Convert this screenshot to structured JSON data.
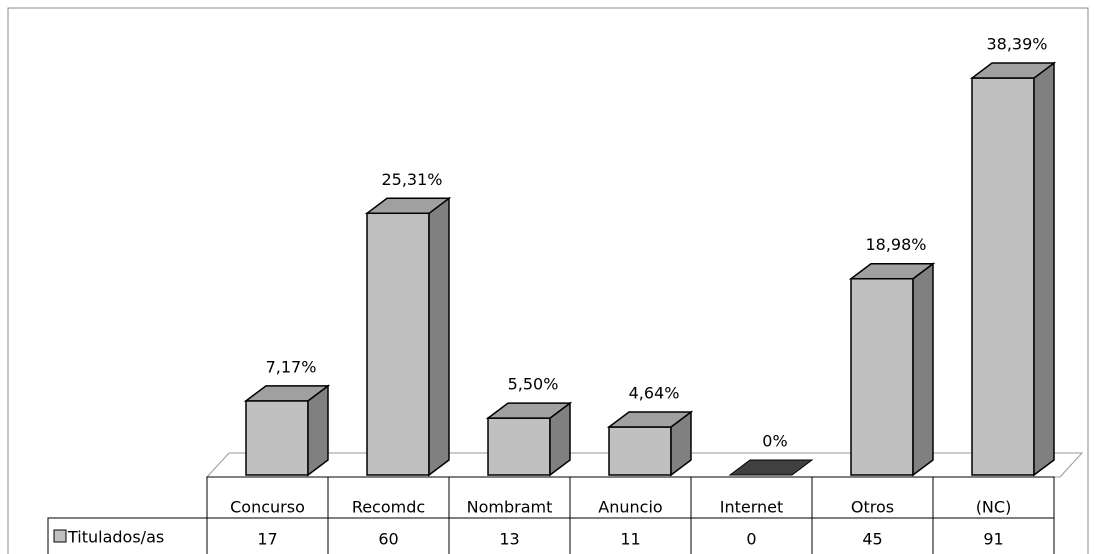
{
  "chart_data": {
    "type": "bar3d",
    "categories": [
      "Concurso",
      "Recomdc",
      "Nombramt",
      "Anuncio",
      "Internet",
      "Otros",
      "(NC)"
    ],
    "series": [
      {
        "name": "Titulados/as",
        "color": "#c0c0c0",
        "values": [
          7.17,
          25.31,
          5.5,
          4.64,
          0,
          18.98,
          38.39
        ],
        "value_labels": [
          "7,17%",
          "25,31%",
          "5,50%",
          "4,64%",
          "0%",
          "18,98%",
          "38,39%"
        ],
        "table_values": [
          17,
          60,
          13,
          11,
          0,
          45,
          91
        ]
      }
    ]
  }
}
